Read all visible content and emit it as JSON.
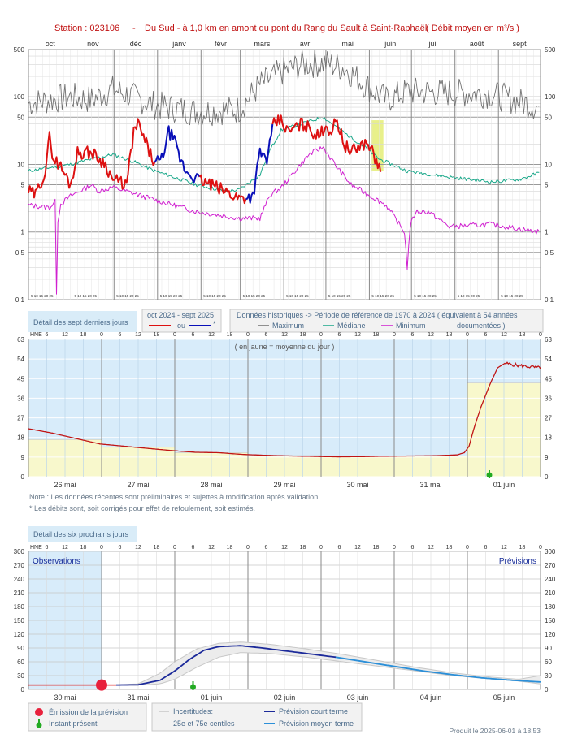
{
  "header": {
    "station": "Station : 023106",
    "dash": "-",
    "description": "Du Sud - à 1,0 km en amont du pont du Rang du Sault à Saint-Raphaël",
    "units": "( Débit moyen en m³/s )"
  },
  "colors": {
    "red": "#dd1111",
    "blue": "#0a10b8",
    "max": "#707070",
    "median": "#1aa88a",
    "min": "#d020d0",
    "highlight": "#e8f08a",
    "obs_bg": "#d8ecfa",
    "mean_fill": "#f8f8cc",
    "short_forecast": "#1c2a9a",
    "medium_forecast": "#2b8fd8",
    "uncert": "#c8c8c8"
  },
  "chart_data": [
    {
      "type": "line",
      "title": "",
      "yscale": "log",
      "ylim": [
        0.1,
        500
      ],
      "yticks": [
        "0.1",
        "0.5",
        "1",
        "5",
        "10",
        "50",
        "100",
        "500"
      ],
      "months": [
        "oct",
        "nov",
        "déc",
        "janv",
        "févr",
        "mars",
        "avr",
        "mai",
        "juin",
        "juil",
        "août",
        "sept"
      ],
      "day_ticks": "5 10 15 20 25",
      "series": [
        {
          "name": "Maximum",
          "role": "max",
          "keypoints": [
            [
              0,
              80
            ],
            [
              30,
              100
            ],
            [
              45,
              90
            ],
            [
              60,
              130
            ],
            [
              90,
              75
            ],
            [
              120,
              60
            ],
            [
              150,
              65
            ],
            [
              165,
              150
            ],
            [
              180,
              230
            ],
            [
              195,
              300
            ],
            [
              210,
              320
            ],
            [
              225,
              270
            ],
            [
              240,
              150
            ],
            [
              255,
              90
            ],
            [
              270,
              120
            ],
            [
              300,
              115
            ],
            [
              330,
              110
            ],
            [
              364,
              70
            ]
          ]
        },
        {
          "name": "Médiane",
          "role": "median",
          "keypoints": [
            [
              0,
              8
            ],
            [
              30,
              10
            ],
            [
              45,
              12
            ],
            [
              60,
              14
            ],
            [
              75,
              11
            ],
            [
              90,
              8
            ],
            [
              120,
              5
            ],
            [
              140,
              4
            ],
            [
              150,
              4.2
            ],
            [
              165,
              7
            ],
            [
              172,
              16
            ],
            [
              180,
              32
            ],
            [
              195,
              40
            ],
            [
              210,
              50
            ],
            [
              220,
              35
            ],
            [
              230,
              25
            ],
            [
              240,
              18
            ],
            [
              250,
              12
            ],
            [
              270,
              8
            ],
            [
              300,
              6.5
            ],
            [
              330,
              5.5
            ],
            [
              350,
              6
            ],
            [
              364,
              7.5
            ]
          ]
        },
        {
          "name": "Minimum",
          "role": "min",
          "keypoints": [
            [
              0,
              2.5
            ],
            [
              15,
              2.3
            ],
            [
              19,
              2.8
            ],
            [
              20,
              0.13
            ],
            [
              21,
              1.5
            ],
            [
              23,
              2.6
            ],
            [
              30,
              3.4
            ],
            [
              45,
              5
            ],
            [
              50,
              4
            ],
            [
              60,
              4.6
            ],
            [
              90,
              3
            ],
            [
              120,
              2
            ],
            [
              150,
              1.6
            ],
            [
              165,
              1.6
            ],
            [
              172,
              3.5
            ],
            [
              180,
              4.5
            ],
            [
              190,
              8
            ],
            [
              200,
              14
            ],
            [
              210,
              18
            ],
            [
              220,
              9
            ],
            [
              230,
              5
            ],
            [
              240,
              3.8
            ],
            [
              255,
              2.5
            ],
            [
              268,
              1
            ],
            [
              270,
              0.3
            ],
            [
              272,
              1.2
            ],
            [
              276,
              2
            ],
            [
              285,
              2
            ],
            [
              300,
              1.2
            ],
            [
              330,
              1.3
            ],
            [
              364,
              1
            ]
          ]
        },
        {
          "name": "oct 2024 - sept 2025",
          "role": "current",
          "keypoints": [
            [
              0,
              4
            ],
            [
              5,
              3.5
            ],
            [
              12,
              8
            ],
            [
              15,
              25
            ],
            [
              18,
              12
            ],
            [
              22,
              10
            ],
            [
              30,
              5
            ],
            [
              35,
              15
            ],
            [
              45,
              15
            ],
            [
              55,
              10
            ],
            [
              60,
              6
            ],
            [
              70,
              5
            ],
            [
              75,
              30
            ],
            [
              78,
              40
            ],
            [
              82,
              25
            ],
            [
              90,
              10
            ],
            [
              95,
              12
            ],
            [
              100,
              30
            ],
            [
              103,
              25
            ],
            [
              108,
              12
            ],
            [
              112,
              8
            ],
            [
              121,
              6
            ],
            [
              130,
              5
            ],
            [
              140,
              4
            ],
            [
              150,
              3.2
            ],
            [
              160,
              3.4
            ],
            [
              165,
              15
            ],
            [
              170,
              12
            ],
            [
              175,
              40
            ],
            [
              180,
              45
            ],
            [
              185,
              30
            ],
            [
              195,
              40
            ],
            [
              200,
              35
            ],
            [
              207,
              25
            ],
            [
              212,
              40
            ],
            [
              215,
              30
            ],
            [
              220,
              45
            ],
            [
              225,
              20
            ],
            [
              230,
              15
            ],
            [
              238,
              20
            ],
            [
              243,
              20
            ],
            [
              247,
              12
            ],
            [
              251,
              8
            ]
          ]
        }
      ],
      "blue_ranges": [
        [
          90,
          121
        ],
        [
          155,
          173
        ]
      ],
      "highlight_period": "mai",
      "legend": {
        "period": "oct 2024 - sept 2025",
        "ou": "ou",
        "star": "*",
        "historic": "Données historiques -> Période de référence  de 1970 à 2024   ( équivalent à 54 années",
        "max_label": "Maximum",
        "median_label": "Médiane",
        "min_label": "Minimum",
        "documented": "documentées )"
      }
    },
    {
      "type": "line",
      "title": "Détail des sept derniers jours",
      "yscale": "linear",
      "ylim": [
        0,
        63
      ],
      "yticks": [
        0,
        9,
        18,
        27,
        36,
        45,
        54,
        63
      ],
      "hour_label": "HNE",
      "hours": [
        "6",
        "12",
        "18",
        "0"
      ],
      "days": [
        "26 mai",
        "27 mai",
        "28 mai",
        "29 mai",
        "30 mai",
        "31 mai",
        "01 juin"
      ],
      "x_range_days": [
        0,
        7
      ],
      "annotation": "( en jaune = moyenne du jour )",
      "daily_means": [
        17,
        13.5,
        11,
        9.7,
        9.2,
        9.5,
        43
      ],
      "series": [
        {
          "name": "oct 2024 - sept 2025",
          "points": [
            [
              0,
              22
            ],
            [
              0.5,
              20
            ],
            [
              1,
              17.5
            ],
            [
              1.5,
              15
            ],
            [
              2,
              14
            ],
            [
              2.5,
              13
            ],
            [
              3,
              12
            ],
            [
              3.5,
              11.2
            ],
            [
              4,
              11
            ],
            [
              4.5,
              10.2
            ],
            [
              5,
              9.8
            ],
            [
              5.5,
              9.5
            ],
            [
              6,
              9.3
            ],
            [
              6.5,
              9.1
            ],
            [
              7,
              9.2
            ],
            [
              7.5,
              9.4
            ],
            [
              8,
              9.5
            ],
            [
              8.5,
              9.6
            ],
            [
              9,
              10
            ],
            [
              9.15,
              11
            ],
            [
              9.25,
              14
            ],
            [
              9.35,
              22
            ],
            [
              9.5,
              32
            ],
            [
              9.7,
              43
            ],
            [
              9.85,
              50
            ],
            [
              10,
              52
            ],
            [
              10.3,
              51
            ],
            [
              10.7,
              50
            ]
          ]
        }
      ],
      "notes": [
        "Note : Les données récentes sont préliminaires et sujettes à modification après validation.",
        "* Les débits sont, soit corrigés pour effet de refoulement, soit estimés."
      ]
    },
    {
      "type": "line",
      "title": "Détail des six prochains jours",
      "yscale": "linear",
      "ylim": [
        0,
        300
      ],
      "yticks": [
        0,
        30,
        60,
        90,
        120,
        150,
        180,
        210,
        240,
        270,
        300
      ],
      "hour_label": "HNE",
      "hours": [
        "6",
        "12",
        "18",
        "0"
      ],
      "days": [
        "30 mai",
        "31 mai",
        "01 juin",
        "02 juin",
        "03 juin",
        "04 juin",
        "05 juin"
      ],
      "observations_label": "Observations",
      "forecast_label": "Prévisions",
      "series": [
        {
          "name": "Observations",
          "points": [
            [
              0,
              9.5
            ],
            [
              0.5,
              9.5
            ],
            [
              1,
              9.5
            ],
            [
              1.2,
              9.5
            ]
          ]
        },
        {
          "name": "Prévision court terme",
          "points": [
            [
              1.2,
              9.5
            ],
            [
              1.5,
              10
            ],
            [
              1.8,
              20
            ],
            [
              2.0,
              40
            ],
            [
              2.2,
              65
            ],
            [
              2.4,
              85
            ],
            [
              2.6,
              93
            ],
            [
              2.9,
              95
            ],
            [
              3.2,
              90
            ],
            [
              3.5,
              84
            ],
            [
              3.8,
              78
            ],
            [
              4.0,
              74
            ],
            [
              4.2,
              70
            ]
          ]
        },
        {
          "name": "Prévision moyen terme",
          "points": [
            [
              4.2,
              70
            ],
            [
              4.6,
              60
            ],
            [
              5.0,
              50
            ],
            [
              5.4,
              40
            ],
            [
              5.8,
              32
            ],
            [
              6.2,
              25
            ],
            [
              6.6,
              20
            ],
            [
              7.0,
              16
            ]
          ]
        },
        {
          "name": "Incertitudes",
          "upper": [
            [
              1.2,
              10
            ],
            [
              1.5,
              12
            ],
            [
              1.8,
              35
            ],
            [
              2.0,
              60
            ],
            [
              2.3,
              88
            ],
            [
              2.6,
              100
            ],
            [
              2.9,
              103
            ],
            [
              3.3,
              98
            ],
            [
              3.8,
              88
            ],
            [
              4.3,
              76
            ],
            [
              4.8,
              62
            ],
            [
              5.3,
              48
            ],
            [
              5.8,
              36
            ],
            [
              6.3,
              27
            ],
            [
              6.7,
              22
            ],
            [
              7.0,
              30
            ]
          ],
          "lower": [
            [
              1.2,
              9
            ],
            [
              1.5,
              9.5
            ],
            [
              1.8,
              12
            ],
            [
              2.0,
              22
            ],
            [
              2.3,
              48
            ],
            [
              2.6,
              70
            ],
            [
              2.9,
              80
            ],
            [
              3.3,
              78
            ],
            [
              3.8,
              70
            ],
            [
              4.3,
              60
            ],
            [
              4.8,
              50
            ],
            [
              5.3,
              40
            ],
            [
              5.8,
              30
            ],
            [
              6.3,
              23
            ],
            [
              6.7,
              18
            ],
            [
              7.0,
              12
            ]
          ]
        }
      ],
      "emission_x": 1.0,
      "present_x": 2.25
    }
  ],
  "legend_bottom": {
    "emission": "Émission de la prévision",
    "present": "Instant présent",
    "uncert_title": "Incertitudes:",
    "uncert_desc": "25e et 75e centiles",
    "short": "Prévision court terme",
    "medium": "Prévision moyen terme"
  },
  "footer": "Produit le 2025-06-01 à 18:53"
}
